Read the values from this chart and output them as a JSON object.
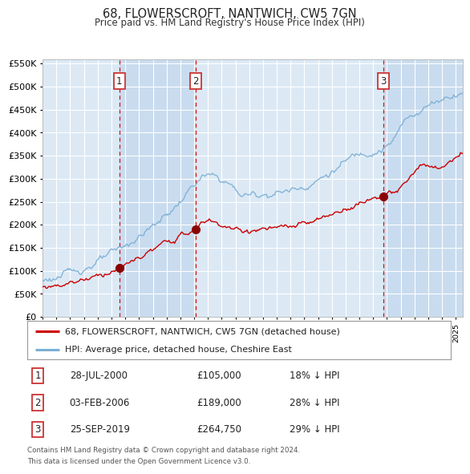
{
  "title": "68, FLOWERSCROFT, NANTWICH, CW5 7GN",
  "subtitle": "Price paid vs. HM Land Registry's House Price Index (HPI)",
  "hpi_label": "HPI: Average price, detached house, Cheshire East",
  "property_label": "68, FLOWERSCROFT, NANTWICH, CW5 7GN (detached house)",
  "transactions": [
    {
      "num": 1,
      "date": "28-JUL-2000",
      "price": 105000,
      "pct": "18%",
      "dir": "↓",
      "x_year": 2000.57
    },
    {
      "num": 2,
      "date": "03-FEB-2006",
      "price": 189000,
      "pct": "28%",
      "dir": "↓",
      "x_year": 2006.09
    },
    {
      "num": 3,
      "date": "25-SEP-2019",
      "price": 264750,
      "pct": "29%",
      "dir": "↓",
      "x_year": 2019.73
    }
  ],
  "ylim": [
    0,
    560000
  ],
  "xlim_start": 1995.0,
  "xlim_end": 2025.5,
  "background_color": "#ffffff",
  "plot_bg_color": "#dce9f5",
  "grid_color": "#ffffff",
  "hpi_color": "#7aafd4",
  "property_color": "#cc0000",
  "vline_color": "#cc0000",
  "footer": "Contains HM Land Registry data © Crown copyright and database right 2024.\nThis data is licensed under the Open Government Licence v3.0."
}
